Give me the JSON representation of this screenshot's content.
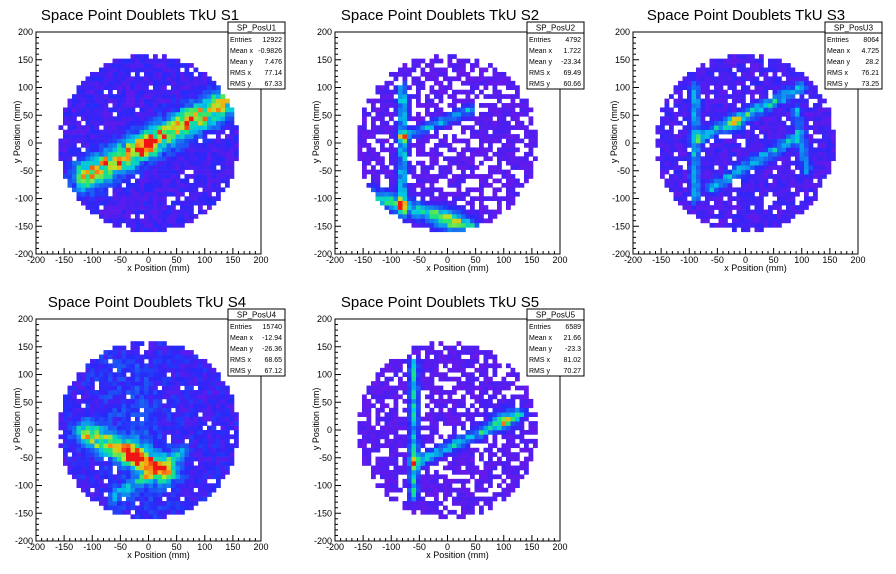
{
  "chart_data": [
    {
      "type": "heatmap",
      "title": "Space Point Doublets TkU S1",
      "xlabel": "x Position (mm)",
      "ylabel": "y Position (mm)",
      "xlim": [
        -200,
        200
      ],
      "ylim": [
        -200,
        200
      ],
      "xticks": [
        -200,
        -150,
        -100,
        -50,
        0,
        50,
        100,
        150,
        200
      ],
      "yticks": [
        -200,
        -150,
        -100,
        -50,
        0,
        50,
        100,
        150,
        200
      ],
      "stats": {
        "name": "SP_PosU1",
        "rows": [
          {
            "label": "Entries",
            "value": "12922"
          },
          {
            "label": "Mean x",
            "value": "-0.9826"
          },
          {
            "label": "Mean y",
            "value": "7.476"
          },
          {
            "label": "RMS x",
            "value": "77.14"
          },
          {
            "label": "RMS y",
            "value": "67.33"
          }
        ]
      },
      "pattern": {
        "seed": 11,
        "density": 1.5,
        "empty_fraction": 0.06,
        "bands": [
          {
            "x1": -110,
            "y1": -60,
            "x2": 130,
            "y2": 70,
            "width": 18,
            "strength": 5.5
          }
        ],
        "hotspots": [
          {
            "x": -10,
            "y": -5,
            "r": 12,
            "strength": 3
          }
        ]
      }
    },
    {
      "type": "heatmap",
      "title": "Space Point Doublets TkU S2",
      "xlabel": "x Position (mm)",
      "ylabel": "y Position (mm)",
      "xlim": [
        -200,
        200
      ],
      "ylim": [
        -200,
        200
      ],
      "xticks": [
        -200,
        -150,
        -100,
        -50,
        0,
        50,
        100,
        150,
        200
      ],
      "yticks": [
        -200,
        -150,
        -100,
        -50,
        0,
        50,
        100,
        150,
        200
      ],
      "stats": {
        "name": "SP_PosU2",
        "rows": [
          {
            "label": "Entries",
            "value": "4792"
          },
          {
            "label": "Mean x",
            "value": "1.722"
          },
          {
            "label": "Mean y",
            "value": "-23.34"
          },
          {
            "label": "RMS x",
            "value": "69.49"
          },
          {
            "label": "RMS y",
            "value": "60.66"
          }
        ]
      },
      "pattern": {
        "seed": 23,
        "density": 0.9,
        "empty_fraction": 0.3,
        "bands": [
          {
            "x1": -80,
            "y1": -130,
            "x2": -80,
            "y2": 100,
            "width": 6,
            "strength": 3.5
          },
          {
            "x1": -80,
            "y1": 10,
            "x2": 40,
            "y2": 60,
            "width": 6,
            "strength": 3
          },
          {
            "x1": -150,
            "y1": -90,
            "x2": 40,
            "y2": -150,
            "width": 10,
            "strength": 4
          }
        ],
        "hotspots": [
          {
            "x": 0,
            "y": -140,
            "r": 18,
            "strength": 2
          }
        ]
      }
    },
    {
      "type": "heatmap",
      "title": "Space Point Doublets TkU S3",
      "xlabel": "x Position (mm)",
      "ylabel": "y Position (mm)",
      "xlim": [
        -200,
        200
      ],
      "ylim": [
        -200,
        200
      ],
      "xticks": [
        -200,
        -150,
        -100,
        -50,
        0,
        50,
        100,
        150,
        200
      ],
      "yticks": [
        -200,
        -150,
        -100,
        -50,
        0,
        50,
        100,
        150,
        200
      ],
      "stats": {
        "name": "SP_PosU3",
        "rows": [
          {
            "label": "Entries",
            "value": "8064"
          },
          {
            "label": "Mean x",
            "value": "4.725"
          },
          {
            "label": "Mean y",
            "value": "28.2"
          },
          {
            "label": "RMS x",
            "value": "76.21"
          },
          {
            "label": "RMS y",
            "value": "73.25"
          }
        ]
      },
      "pattern": {
        "seed": 37,
        "density": 1.3,
        "empty_fraction": 0.12,
        "bands": [
          {
            "x1": -90,
            "y1": 100,
            "x2": -90,
            "y2": -100,
            "width": 6,
            "strength": 3
          },
          {
            "x1": -80,
            "y1": 10,
            "x2": 100,
            "y2": 100,
            "width": 7,
            "strength": 3.5
          },
          {
            "x1": -60,
            "y1": -80,
            "x2": 90,
            "y2": 10,
            "width": 7,
            "strength": 3
          },
          {
            "x1": 90,
            "y1": 60,
            "x2": 110,
            "y2": -50,
            "width": 6,
            "strength": 2.5
          }
        ],
        "hotspots": [
          {
            "x": -20,
            "y": 35,
            "r": 10,
            "strength": 3
          }
        ]
      }
    },
    {
      "type": "heatmap",
      "title": "Space Point Doublets TkU S4",
      "xlabel": "x Position (mm)",
      "ylabel": "y Position (mm)",
      "xlim": [
        -200,
        200
      ],
      "ylim": [
        -200,
        200
      ],
      "xticks": [
        -200,
        -150,
        -100,
        -50,
        0,
        50,
        100,
        150,
        200
      ],
      "yticks": [
        -200,
        -150,
        -100,
        -50,
        0,
        50,
        100,
        150,
        200
      ],
      "stats": {
        "name": "SP_PosU4",
        "rows": [
          {
            "label": "Entries",
            "value": "15740"
          },
          {
            "label": "Mean x",
            "value": "-12.94"
          },
          {
            "label": "Mean y",
            "value": "-26.36"
          },
          {
            "label": "RMS x",
            "value": "68.65"
          },
          {
            "label": "RMS y",
            "value": "67.12"
          }
        ]
      },
      "pattern": {
        "seed": 53,
        "density": 1.7,
        "empty_fraction": 0.05,
        "bands": [
          {
            "x1": -110,
            "y1": -5,
            "x2": 30,
            "y2": -75,
            "width": 14,
            "strength": 5
          },
          {
            "x1": -60,
            "y1": -120,
            "x2": 60,
            "y2": -40,
            "width": 8,
            "strength": 2.5
          },
          {
            "x1": -40,
            "y1": 100,
            "x2": 0,
            "y2": -100,
            "width": 40,
            "strength": 0.8
          }
        ],
        "hotspots": [
          {
            "x": -30,
            "y": -40,
            "r": 14,
            "strength": 3
          }
        ]
      }
    },
    {
      "type": "heatmap",
      "title": "Space Point Doublets TkU S5",
      "xlabel": "x Position (mm)",
      "ylabel": "y Position (mm)",
      "xlim": [
        -200,
        200
      ],
      "ylim": [
        -200,
        200
      ],
      "xticks": [
        -200,
        -150,
        -100,
        -50,
        0,
        50,
        100,
        150,
        200
      ],
      "yticks": [
        -200,
        -150,
        -100,
        -50,
        0,
        50,
        100,
        150,
        200
      ],
      "stats": {
        "name": "SP_PosU5",
        "rows": [
          {
            "label": "Entries",
            "value": "6589"
          },
          {
            "label": "Mean x",
            "value": "21.66"
          },
          {
            "label": "Mean y",
            "value": "-23.3"
          },
          {
            "label": "RMS x",
            "value": "81.02"
          },
          {
            "label": "RMS y",
            "value": "70.27"
          }
        ]
      },
      "pattern": {
        "seed": 71,
        "density": 0.9,
        "empty_fraction": 0.28,
        "bands": [
          {
            "x1": -60,
            "y1": -120,
            "x2": -60,
            "y2": 120,
            "width": 6,
            "strength": 3.5
          },
          {
            "x1": -60,
            "y1": -60,
            "x2": 130,
            "y2": 30,
            "width": 7,
            "strength": 3.5
          }
        ],
        "hotspots": [
          {
            "x": 100,
            "y": 20,
            "r": 14,
            "strength": 2.5
          }
        ]
      }
    }
  ]
}
